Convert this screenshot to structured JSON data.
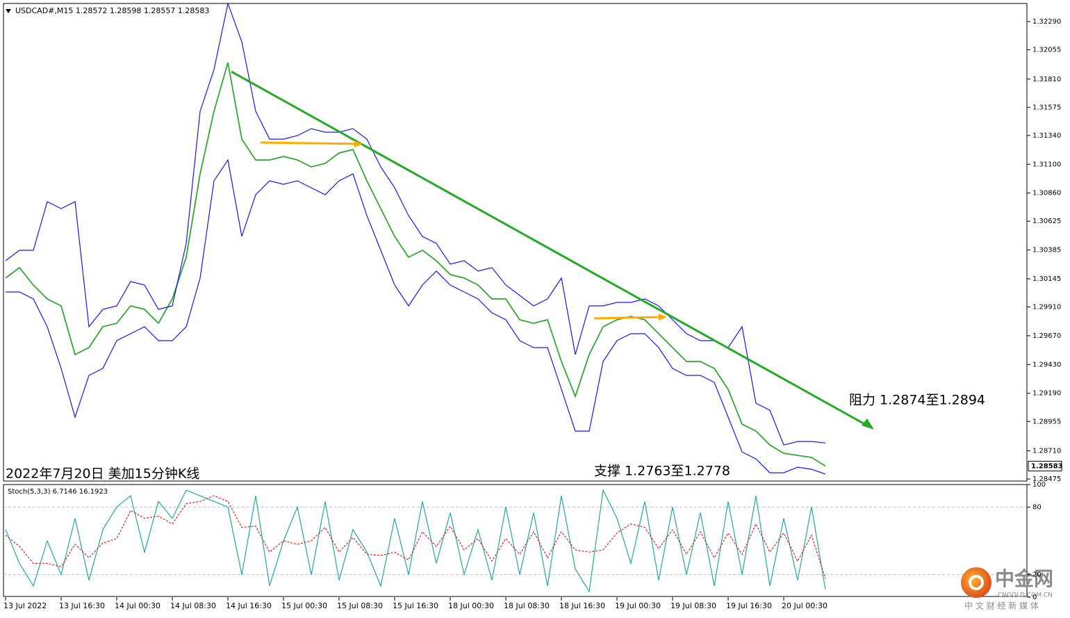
{
  "chart_data": [
    {
      "type": "line",
      "title": "USDCAD#,M15  1.28572 1.28598 1.28557 1.28583",
      "annotations": [
        "2022年7月20日 美加15分钟K线",
        "支撑 1.2763至1.2778",
        "阻力 1.2874至1.2894"
      ],
      "last_price": 1.28583,
      "x": [
        0,
        8,
        16,
        24,
        32,
        40,
        48,
        56,
        64,
        72,
        80,
        88,
        96,
        104,
        112,
        120,
        128,
        136,
        144,
        152,
        160,
        168,
        176,
        184,
        192,
        200,
        208,
        216,
        224,
        232,
        240,
        248,
        256,
        264,
        272,
        280,
        288,
        296,
        304,
        312,
        320,
        328,
        336,
        344,
        352,
        360,
        368,
        376,
        384,
        392,
        400,
        408,
        416,
        424,
        432,
        440,
        448,
        456,
        464,
        472
      ],
      "xlim": [
        0,
        588
      ],
      "xticks": [
        {
          "value": 0,
          "label": "13 Jul 2022"
        },
        {
          "value": 32,
          "label": "13 Jul 16:30"
        },
        {
          "value": 64,
          "label": "14 Jul 00:30"
        },
        {
          "value": 96,
          "label": "14 Jul 08:30"
        },
        {
          "value": 128,
          "label": "14 Jul 16:30"
        },
        {
          "value": 160,
          "label": "15 Jul 00:30"
        },
        {
          "value": 192,
          "label": "15 Jul 08:30"
        },
        {
          "value": 224,
          "label": "15 Jul 16:30"
        },
        {
          "value": 256,
          "label": "18 Jul 00:30"
        },
        {
          "value": 288,
          "label": "18 Jul 08:30"
        },
        {
          "value": 320,
          "label": "18 Jul 16:30"
        },
        {
          "value": 352,
          "label": "19 Jul 00:30"
        },
        {
          "value": 384,
          "label": "19 Jul 08:30"
        },
        {
          "value": 416,
          "label": "19 Jul 16:30"
        },
        {
          "value": 448,
          "label": "20 Jul 00:30"
        }
      ],
      "ylim": [
        1.28458,
        1.32441
      ],
      "yticks": [
        {
          "value": 1.3229,
          "label": "1.32290"
        },
        1.32055,
        {
          "value": 1.3181,
          "label": "1.31810"
        },
        1.31575,
        {
          "value": 1.3134,
          "label": "1.31340"
        },
        {
          "value": 1.311,
          "label": "1.31100"
        },
        {
          "value": 1.3086,
          "label": "1.30860"
        },
        1.30625,
        1.30385,
        1.30145,
        {
          "value": 1.2991,
          "label": "1.29910"
        },
        {
          "value": 1.2967,
          "label": "1.29670"
        },
        {
          "value": 1.2943,
          "label": "1.29430"
        },
        {
          "value": 1.2919,
          "label": "1.29190"
        },
        1.28955,
        {
          "value": 1.2871,
          "label": "1.28710"
        },
        1.28475
      ],
      "grid": false,
      "series": [
        {
          "name": "Close",
          "color": "#2ea82e",
          "values": [
            1.30151,
            1.30238,
            1.30093,
            1.29977,
            1.29919,
            1.29513,
            1.29571,
            1.29745,
            1.29774,
            1.29919,
            1.2989,
            1.29774,
            1.29977,
            1.30325,
            1.3102,
            1.31542,
            1.31948,
            1.3131,
            1.31136,
            1.31136,
            1.31165,
            1.31136,
            1.31078,
            1.31107,
            1.31194,
            1.31223,
            1.30962,
            1.3073,
            1.30498,
            1.30325,
            1.30383,
            1.30296,
            1.3018,
            1.30151,
            1.30093,
            1.29977,
            1.29977,
            1.29803,
            1.29774,
            1.29803,
            1.29455,
            1.29165,
            1.29513,
            1.29745,
            1.29803,
            1.29832,
            1.29803,
            1.29687,
            1.29571,
            1.29455,
            1.29455,
            1.29397,
            1.29223,
            1.28933,
            1.28875,
            1.28759,
            1.2869,
            1.28672,
            1.28655,
            1.28583
          ]
        },
        {
          "name": "BB Upper",
          "color": "#1414ff",
          "values": [
            1.30296,
            1.30383,
            1.30383,
            1.30788,
            1.3073,
            1.30788,
            1.29745,
            1.2989,
            1.29919,
            1.30122,
            1.30093,
            1.2989,
            1.29919,
            1.3044,
            1.31542,
            1.3189,
            1.32441,
            1.32122,
            1.31542,
            1.3131,
            1.3131,
            1.31339,
            1.31397,
            1.31368,
            1.31368,
            1.31397,
            1.3131,
            1.31078,
            1.30904,
            1.30672,
            1.30498,
            1.3044,
            1.30267,
            1.30296,
            1.30209,
            1.30238,
            1.30093,
            1.30006,
            1.29919,
            1.29977,
            1.30151,
            1.29513,
            1.29919,
            1.29919,
            1.29948,
            1.29948,
            1.29977,
            1.29919,
            1.29803,
            1.29687,
            1.29629,
            1.29629,
            1.29571,
            1.29745,
            1.29107,
            1.29049,
            1.28759,
            1.28788,
            1.28788,
            1.28776
          ]
        },
        {
          "name": "BB Lower",
          "color": "#1414ff",
          "values": [
            1.30035,
            1.30035,
            1.29977,
            1.29745,
            1.29397,
            1.28991,
            1.29339,
            1.29397,
            1.29629,
            1.29687,
            1.29745,
            1.29629,
            1.29629,
            1.29745,
            1.30151,
            1.30962,
            1.31136,
            1.30498,
            1.30846,
            1.30962,
            1.30933,
            1.30962,
            1.30904,
            1.30846,
            1.30962,
            1.3102,
            1.30672,
            1.30383,
            1.30093,
            1.29919,
            1.30093,
            1.30209,
            1.30093,
            1.30035,
            1.29977,
            1.29861,
            1.29803,
            1.29629,
            1.29571,
            1.29571,
            1.29223,
            1.28875,
            1.28875,
            1.29455,
            1.29629,
            1.29687,
            1.29687,
            1.29571,
            1.29397,
            1.29339,
            1.29339,
            1.29281,
            1.28991,
            1.28701,
            1.28643,
            1.28527,
            1.28527,
            1.28574,
            1.28556,
            1.28516
          ]
        }
      ]
    },
    {
      "type": "line",
      "title": "Stoch(5,3,3) 6.7146 16.1923",
      "ylim": [
        0,
        100
      ],
      "yticks": [
        100,
        80,
        20,
        0
      ],
      "grid": true,
      "series": [
        {
          "name": "Main",
          "color": "#20a8a0",
          "values": [
            60,
            30,
            10,
            50,
            20,
            70,
            15,
            60,
            80,
            90,
            40,
            85,
            70,
            95,
            90,
            85,
            80,
            20,
            90,
            10,
            50,
            80,
            20,
            85,
            15,
            60,
            40,
            10,
            70,
            20,
            85,
            30,
            75,
            20,
            60,
            15,
            80,
            20,
            75,
            10,
            90,
            25,
            5,
            95,
            70,
            30,
            85,
            15,
            80,
            20,
            75,
            10,
            85,
            20,
            90,
            10,
            70,
            15,
            80,
            6.7146
          ]
        },
        {
          "name": "Signal",
          "color": "#e02020",
          "dash": true,
          "values": [
            55,
            45,
            30,
            30,
            27,
            47,
            35,
            48,
            52,
            77,
            70,
            72,
            65,
            83,
            85,
            90,
            85,
            62,
            63,
            40,
            50,
            47,
            50,
            62,
            40,
            53,
            38,
            37,
            40,
            33,
            58,
            45,
            63,
            42,
            52,
            32,
            52,
            38,
            58,
            35,
            58,
            42,
            40,
            42,
            57,
            65,
            62,
            43,
            60,
            38,
            58,
            35,
            57,
            38,
            65,
            40,
            57,
            32,
            55,
            16.1923
          ]
        }
      ]
    }
  ],
  "watermark": {
    "name": "中金网",
    "domain": "CNGOLD.COM.CN",
    "tagline": "中 文 财 经 新 媒 体"
  }
}
